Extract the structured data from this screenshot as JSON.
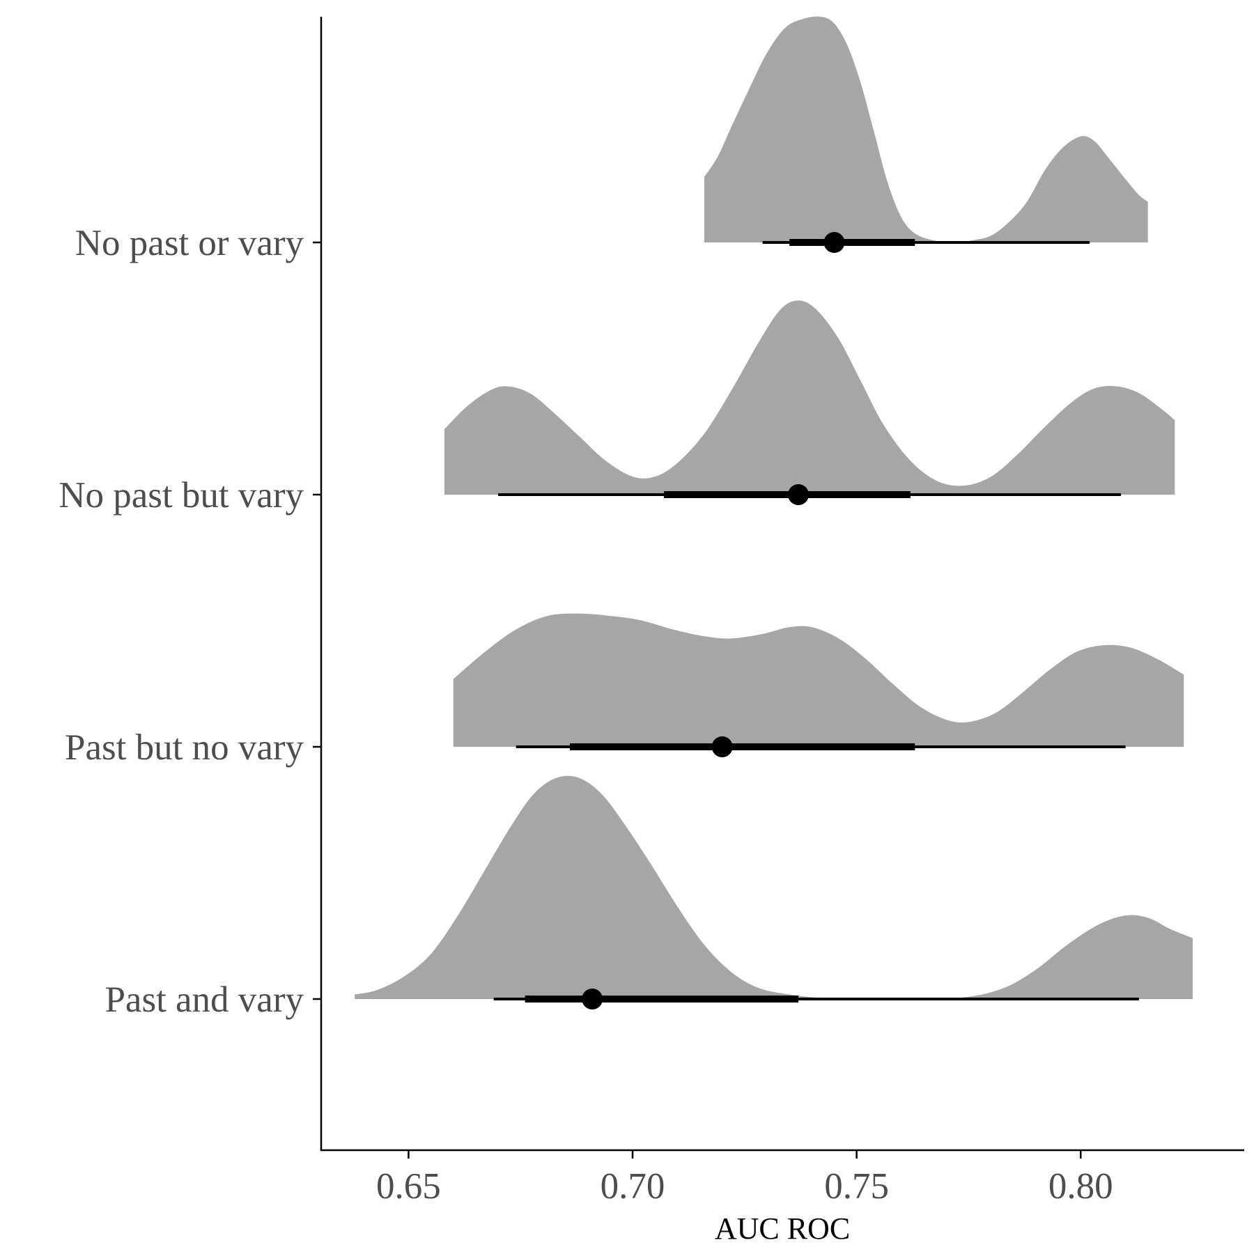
{
  "chart_data": {
    "type": "halfeye",
    "xlabel": "AUC ROC",
    "ylabel": "",
    "title": "",
    "xlim": [
      0.6305,
      0.8365
    ],
    "xticks": [
      0.65,
      0.7,
      0.75,
      0.8
    ],
    "xtick_labels": [
      "0.65",
      "0.70",
      "0.75",
      "0.80"
    ],
    "categories": [
      "No past or vary",
      "No past but vary",
      "Past but no vary",
      "Past and vary"
    ],
    "grid": false,
    "legend": "none",
    "fill_color": "#a6a6a6",
    "interval_color": "#000000",
    "series": [
      {
        "label": "No past or vary",
        "point": 0.745,
        "interval_66": [
          0.735,
          0.763
        ],
        "interval_95": [
          0.729,
          0.802
        ],
        "density_range": [
          0.716,
          0.815
        ],
        "density": [
          [
            0.716,
            0.29
          ],
          [
            0.719,
            0.38
          ],
          [
            0.722,
            0.51
          ],
          [
            0.726,
            0.68
          ],
          [
            0.73,
            0.84
          ],
          [
            0.734,
            0.95
          ],
          [
            0.738,
            0.99
          ],
          [
            0.742,
            1.0
          ],
          [
            0.745,
            0.97
          ],
          [
            0.748,
            0.87
          ],
          [
            0.751,
            0.7
          ],
          [
            0.754,
            0.48
          ],
          [
            0.757,
            0.26
          ],
          [
            0.76,
            0.11
          ],
          [
            0.763,
            0.04
          ],
          [
            0.767,
            0.01
          ],
          [
            0.772,
            0.0
          ],
          [
            0.776,
            0.01
          ],
          [
            0.78,
            0.03
          ],
          [
            0.784,
            0.09
          ],
          [
            0.788,
            0.18
          ],
          [
            0.792,
            0.32
          ],
          [
            0.796,
            0.42
          ],
          [
            0.8,
            0.47
          ],
          [
            0.803,
            0.45
          ],
          [
            0.806,
            0.38
          ],
          [
            0.81,
            0.28
          ],
          [
            0.813,
            0.21
          ],
          [
            0.815,
            0.18
          ]
        ]
      },
      {
        "label": "No past but vary",
        "point": 0.737,
        "interval_66": [
          0.707,
          0.762
        ],
        "interval_95": [
          0.67,
          0.809
        ],
        "density_range": [
          0.658,
          0.821
        ],
        "density": [
          [
            0.658,
            0.29
          ],
          [
            0.663,
            0.39
          ],
          [
            0.668,
            0.46
          ],
          [
            0.672,
            0.48
          ],
          [
            0.677,
            0.45
          ],
          [
            0.682,
            0.37
          ],
          [
            0.688,
            0.26
          ],
          [
            0.694,
            0.15
          ],
          [
            0.7,
            0.08
          ],
          [
            0.705,
            0.08
          ],
          [
            0.71,
            0.14
          ],
          [
            0.716,
            0.27
          ],
          [
            0.722,
            0.46
          ],
          [
            0.728,
            0.67
          ],
          [
            0.733,
            0.82
          ],
          [
            0.737,
            0.86
          ],
          [
            0.741,
            0.82
          ],
          [
            0.746,
            0.69
          ],
          [
            0.751,
            0.5
          ],
          [
            0.756,
            0.31
          ],
          [
            0.762,
            0.15
          ],
          [
            0.768,
            0.06
          ],
          [
            0.774,
            0.04
          ],
          [
            0.78,
            0.08
          ],
          [
            0.786,
            0.18
          ],
          [
            0.792,
            0.3
          ],
          [
            0.798,
            0.41
          ],
          [
            0.803,
            0.47
          ],
          [
            0.808,
            0.48
          ],
          [
            0.813,
            0.45
          ],
          [
            0.818,
            0.38
          ],
          [
            0.821,
            0.33
          ]
        ]
      },
      {
        "label": "Past but no vary",
        "point": 0.72,
        "interval_66": [
          0.686,
          0.763
        ],
        "interval_95": [
          0.674,
          0.81
        ],
        "density_range": [
          0.66,
          0.823
        ],
        "density": [
          [
            0.66,
            0.3
          ],
          [
            0.667,
            0.42
          ],
          [
            0.674,
            0.52
          ],
          [
            0.681,
            0.58
          ],
          [
            0.688,
            0.59
          ],
          [
            0.695,
            0.58
          ],
          [
            0.702,
            0.56
          ],
          [
            0.709,
            0.52
          ],
          [
            0.716,
            0.49
          ],
          [
            0.722,
            0.48
          ],
          [
            0.729,
            0.5
          ],
          [
            0.735,
            0.53
          ],
          [
            0.74,
            0.53
          ],
          [
            0.746,
            0.48
          ],
          [
            0.752,
            0.39
          ],
          [
            0.758,
            0.28
          ],
          [
            0.764,
            0.18
          ],
          [
            0.77,
            0.12
          ],
          [
            0.775,
            0.11
          ],
          [
            0.781,
            0.15
          ],
          [
            0.787,
            0.24
          ],
          [
            0.793,
            0.34
          ],
          [
            0.799,
            0.42
          ],
          [
            0.805,
            0.45
          ],
          [
            0.811,
            0.44
          ],
          [
            0.817,
            0.39
          ],
          [
            0.823,
            0.32
          ]
        ]
      },
      {
        "label": "Past and vary",
        "point": 0.691,
        "interval_66": [
          0.676,
          0.737
        ],
        "interval_95": [
          0.669,
          0.813
        ],
        "density_range": [
          0.638,
          0.825
        ],
        "density": [
          [
            0.638,
            0.02
          ],
          [
            0.643,
            0.04
          ],
          [
            0.649,
            0.1
          ],
          [
            0.655,
            0.2
          ],
          [
            0.661,
            0.37
          ],
          [
            0.667,
            0.57
          ],
          [
            0.673,
            0.77
          ],
          [
            0.678,
            0.91
          ],
          [
            0.683,
            0.98
          ],
          [
            0.688,
            0.98
          ],
          [
            0.693,
            0.91
          ],
          [
            0.698,
            0.78
          ],
          [
            0.704,
            0.6
          ],
          [
            0.71,
            0.41
          ],
          [
            0.716,
            0.24
          ],
          [
            0.722,
            0.12
          ],
          [
            0.728,
            0.05
          ],
          [
            0.735,
            0.02
          ],
          [
            0.745,
            0.0
          ],
          [
            0.755,
            0.0
          ],
          [
            0.765,
            0.0
          ],
          [
            0.775,
            0.01
          ],
          [
            0.783,
            0.05
          ],
          [
            0.79,
            0.13
          ],
          [
            0.797,
            0.24
          ],
          [
            0.804,
            0.33
          ],
          [
            0.81,
            0.37
          ],
          [
            0.815,
            0.36
          ],
          [
            0.82,
            0.31
          ],
          [
            0.825,
            0.27
          ]
        ]
      }
    ]
  }
}
